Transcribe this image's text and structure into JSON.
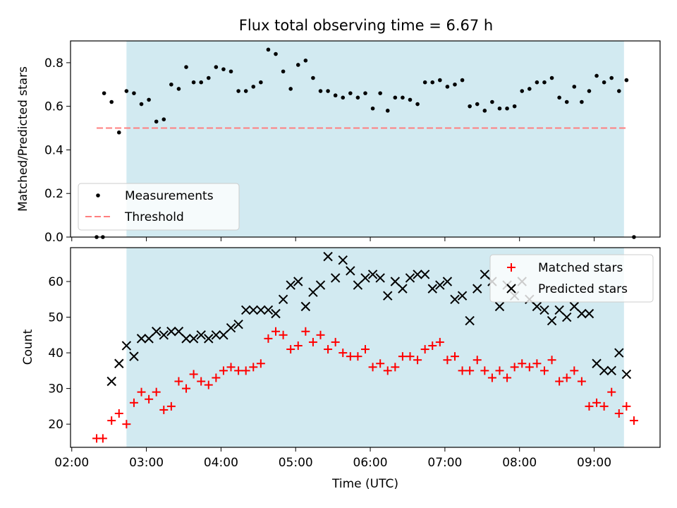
{
  "chart_data": [
    {
      "type": "scatter",
      "title": "Flux total observing time = 6.67 h",
      "ylabel": "Matched/Predicted stars",
      "xlim": [
        "01:59",
        "09:53"
      ],
      "ylim": [
        0,
        0.9
      ],
      "yticks": [
        "0.0",
        "0.2",
        "0.4",
        "0.6",
        "0.8"
      ],
      "shaded_span": [
        "02:44",
        "09:24"
      ],
      "threshold": 0.5,
      "threshold_range": [
        "02:20",
        "09:27"
      ],
      "legend": {
        "position": "lower-left",
        "entries": [
          "Measurements",
          "Threshold"
        ]
      },
      "series": [
        {
          "name": "Measurements",
          "color": "#000000",
          "x": [
            "02:20",
            "02:26",
            "02:32",
            "02:38",
            "02:44",
            "02:50",
            "02:56",
            "03:02",
            "03:08",
            "03:14",
            "03:20",
            "03:26",
            "03:32",
            "03:38",
            "03:44",
            "03:50",
            "03:56",
            "04:02",
            "04:08",
            "04:14",
            "04:20",
            "04:26",
            "04:32",
            "04:38",
            "04:44",
            "04:50",
            "04:56",
            "05:02",
            "05:08",
            "05:14",
            "05:20",
            "05:26",
            "05:32",
            "05:38",
            "05:44",
            "05:50",
            "05:56",
            "06:02",
            "06:08",
            "06:14",
            "06:20",
            "06:26",
            "06:32",
            "06:38",
            "06:44",
            "06:50",
            "06:56",
            "07:02",
            "07:08",
            "07:14",
            "07:20",
            "07:26",
            "07:32",
            "07:38",
            "07:44",
            "07:50",
            "07:56",
            "08:02",
            "08:08",
            "08:14",
            "08:20",
            "08:26",
            "08:32",
            "08:38",
            "08:44",
            "08:50",
            "08:56",
            "09:02",
            "09:08",
            "09:14",
            "09:20",
            "09:26",
            "09:32"
          ],
          "y": [
            0.0,
            0.66,
            0.62,
            0.48,
            0.67,
            0.66,
            0.61,
            0.63,
            0.53,
            0.54,
            0.7,
            0.68,
            0.78,
            0.71,
            0.71,
            0.73,
            0.78,
            0.77,
            0.76,
            0.67,
            0.67,
            0.69,
            0.71,
            0.86,
            0.84,
            0.76,
            0.68,
            0.79,
            0.81,
            0.73,
            0.67,
            0.67,
            0.65,
            0.64,
            0.66,
            0.64,
            0.66,
            0.59,
            0.66,
            0.58,
            0.64,
            0.64,
            0.63,
            0.61,
            0.71,
            0.71,
            0.72,
            0.69,
            0.7,
            0.72,
            0.6,
            0.61,
            0.58,
            0.62,
            0.59,
            0.59,
            0.6,
            0.67,
            0.68,
            0.71,
            0.71,
            0.73,
            0.64,
            0.62,
            0.69,
            0.62,
            0.67,
            0.74,
            0.71,
            0.73,
            0.67,
            0.72,
            0.0
          ],
          "extra_points": [
            [
              "02:25",
              0.0
            ]
          ]
        },
        {
          "name": "Threshold",
          "color": "#ff7f7f",
          "dash": true
        }
      ]
    },
    {
      "type": "scatter",
      "xlabel": "Time (UTC)",
      "ylabel": "Count",
      "xlim": [
        "01:59",
        "09:53"
      ],
      "ylim": [
        13.5,
        69.5
      ],
      "xticks": [
        "02:00",
        "03:00",
        "04:00",
        "05:00",
        "06:00",
        "07:00",
        "08:00",
        "09:00"
      ],
      "yticks": [
        20,
        30,
        40,
        50,
        60
      ],
      "shaded_span": [
        "02:44",
        "09:24"
      ],
      "legend": {
        "position": "top-right",
        "entries": [
          "Matched stars",
          "Predicted stars"
        ]
      },
      "series": [
        {
          "name": "Matched stars",
          "color": "#ff0000",
          "marker": "plus",
          "x": [
            "02:20",
            "02:25",
            "02:32",
            "02:38",
            "02:44",
            "02:50",
            "02:56",
            "03:02",
            "03:08",
            "03:14",
            "03:20",
            "03:26",
            "03:32",
            "03:38",
            "03:44",
            "03:50",
            "03:56",
            "04:02",
            "04:08",
            "04:14",
            "04:20",
            "04:26",
            "04:32",
            "04:38",
            "04:44",
            "04:50",
            "04:56",
            "05:02",
            "05:08",
            "05:14",
            "05:20",
            "05:26",
            "05:32",
            "05:38",
            "05:44",
            "05:50",
            "05:56",
            "06:02",
            "06:08",
            "06:14",
            "06:20",
            "06:26",
            "06:32",
            "06:38",
            "06:44",
            "06:50",
            "06:56",
            "07:02",
            "07:08",
            "07:14",
            "07:20",
            "07:26",
            "07:32",
            "07:38",
            "07:44",
            "07:50",
            "07:56",
            "08:02",
            "08:08",
            "08:14",
            "08:20",
            "08:26",
            "08:32",
            "08:38",
            "08:44",
            "08:50",
            "08:56",
            "09:02",
            "09:08",
            "09:14",
            "09:20",
            "09:26",
            "09:32"
          ],
          "y": [
            16,
            16,
            21,
            23,
            20,
            26,
            29,
            27,
            29,
            24,
            25,
            32,
            30,
            34,
            32,
            31,
            33,
            35,
            36,
            35,
            35,
            36,
            37,
            44,
            46,
            45,
            41,
            42,
            46,
            43,
            45,
            41,
            43,
            40,
            39,
            39,
            41,
            36,
            37,
            35,
            36,
            39,
            39,
            38,
            41,
            42,
            43,
            38,
            39,
            35,
            35,
            38,
            35,
            33,
            35,
            33,
            36,
            37,
            36,
            37,
            35,
            38,
            32,
            33,
            35,
            32,
            25,
            26,
            25,
            29,
            23,
            25,
            21
          ]
        },
        {
          "name": "Predicted stars",
          "color": "#000000",
          "marker": "x",
          "x": [
            "02:32",
            "02:38",
            "02:44",
            "02:50",
            "02:56",
            "03:02",
            "03:08",
            "03:14",
            "03:20",
            "03:26",
            "03:32",
            "03:38",
            "03:44",
            "03:50",
            "03:56",
            "04:02",
            "04:08",
            "04:14",
            "04:20",
            "04:26",
            "04:32",
            "04:38",
            "04:44",
            "04:50",
            "04:56",
            "05:02",
            "05:08",
            "05:14",
            "05:20",
            "05:26",
            "05:32",
            "05:38",
            "05:44",
            "05:50",
            "05:56",
            "06:02",
            "06:08",
            "06:14",
            "06:20",
            "06:26",
            "06:32",
            "06:38",
            "06:44",
            "06:50",
            "06:56",
            "07:02",
            "07:08",
            "07:14",
            "07:20",
            "07:26",
            "07:32",
            "07:38",
            "07:44",
            "07:50",
            "07:56",
            "08:02",
            "08:08",
            "08:14",
            "08:20",
            "08:26",
            "08:32",
            "08:38",
            "08:44",
            "08:50",
            "08:56",
            "09:02",
            "09:08",
            "09:14",
            "09:20",
            "09:26"
          ],
          "y": [
            32,
            37,
            42,
            39,
            44,
            44,
            46,
            45,
            46,
            46,
            44,
            44,
            45,
            44,
            45,
            45,
            47,
            48,
            52,
            52,
            52,
            52,
            51,
            55,
            59,
            60,
            53,
            57,
            59,
            67,
            61,
            66,
            63,
            59,
            61,
            62,
            61,
            56,
            60,
            58,
            61,
            62,
            62,
            58,
            59,
            60,
            55,
            56,
            49,
            58,
            62,
            60,
            53,
            59,
            56,
            60,
            55,
            53,
            52,
            49,
            52,
            50,
            53,
            51,
            51,
            37,
            35,
            35,
            40,
            34
          ]
        }
      ]
    }
  ]
}
